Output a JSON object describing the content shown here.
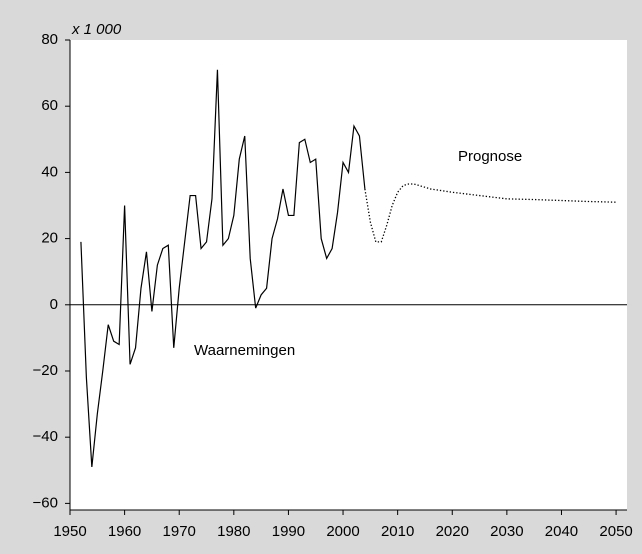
{
  "chart_data": {
    "type": "line",
    "unit_label": "x 1 000",
    "annotations": [
      "Prognose",
      "Waarnemingen"
    ],
    "series": [
      {
        "name": "Waarnemingen",
        "color": "#000000",
        "style": "solid",
        "x": [
          1952,
          1953,
          1954,
          1955,
          1956,
          1957,
          1958,
          1959,
          1960,
          1961,
          1962,
          1963,
          1964,
          1965,
          1966,
          1967,
          1968,
          1969,
          1970,
          1971,
          1972,
          1973,
          1974,
          1975,
          1976,
          1977,
          1978,
          1979,
          1980,
          1981,
          1982,
          1983,
          1984,
          1985,
          1986,
          1987,
          1988,
          1989,
          1990,
          1991,
          1992,
          1993,
          1994,
          1995,
          1996,
          1997,
          1998,
          1999,
          2000,
          2001,
          2002,
          2003,
          2004
        ],
        "values": [
          19,
          -22,
          -49,
          -33,
          -20,
          -6,
          -11,
          -12,
          30,
          -18,
          -13,
          5,
          16,
          -2,
          12,
          17,
          18,
          -13,
          5,
          19,
          33,
          33,
          17,
          19,
          32,
          71,
          18,
          20,
          27,
          44,
          51,
          14,
          -1,
          3,
          5,
          20,
          26,
          35,
          27,
          27,
          49,
          50,
          43,
          44,
          20,
          14,
          17,
          28,
          43,
          40,
          54,
          51,
          35
        ]
      },
      {
        "name": "Prognose",
        "color": "#000000",
        "style": "dotted",
        "x": [
          2004,
          2005,
          2006,
          2007,
          2008,
          2009,
          2010,
          2011,
          2012,
          2013,
          2014,
          2015,
          2016,
          2018,
          2020,
          2025,
          2030,
          2035,
          2040,
          2045,
          2050
        ],
        "values": [
          35,
          25,
          19,
          19,
          24,
          30,
          34,
          36,
          36.5,
          36.5,
          36,
          35.5,
          35,
          34.5,
          34,
          33,
          32,
          31.8,
          31.5,
          31.2,
          31
        ]
      }
    ],
    "xlim": [
      1950,
      2052
    ],
    "ylim": [
      -62,
      80
    ],
    "xticks": [
      1950,
      1960,
      1970,
      1980,
      1990,
      2000,
      2010,
      2020,
      2030,
      2040,
      2050
    ],
    "yticks": [
      {
        "value": -60,
        "label": "−60"
      },
      {
        "value": -40,
        "label": "−40"
      },
      {
        "value": -20,
        "label": "−20"
      },
      0,
      20,
      40,
      60,
      80
    ],
    "zero_line": true
  }
}
